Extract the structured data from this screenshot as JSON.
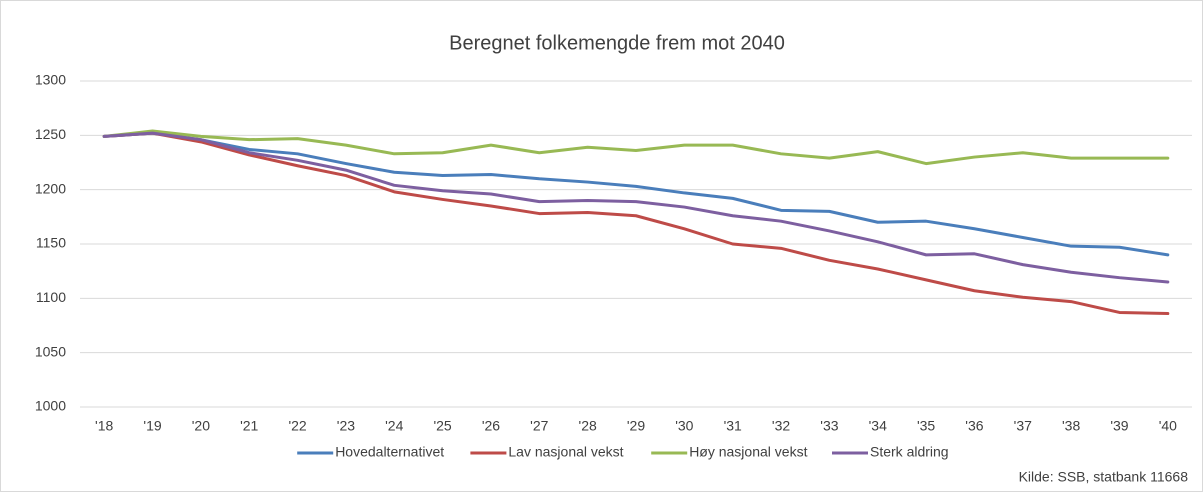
{
  "chart_data": {
    "type": "line",
    "title": "Beregnet folkemengde frem mot 2040",
    "source": "Kilde: SSB, statbank 11668",
    "categories": [
      "'18",
      "'19",
      "'20",
      "'21",
      "'22",
      "'23",
      "'24",
      "'25",
      "'26",
      "'27",
      "'28",
      "'29",
      "'30",
      "'31",
      "'32",
      "'33",
      "'34",
      "'35",
      "'36",
      "'37",
      "'38",
      "'39",
      "'40"
    ],
    "series": [
      {
        "name": "Hovedalternativet",
        "color": "#4a7ebb",
        "values": [
          1249,
          1252,
          1246,
          1237,
          1233,
          1224,
          1216,
          1213,
          1214,
          1210,
          1207,
          1203,
          1197,
          1192,
          1181,
          1180,
          1170,
          1171,
          1164,
          1156,
          1148,
          1147,
          1140
        ]
      },
      {
        "name": "Lav nasjonal vekst",
        "color": "#be4b48",
        "values": [
          1249,
          1252,
          1244,
          1232,
          1222,
          1213,
          1198,
          1191,
          1185,
          1178,
          1179,
          1176,
          1164,
          1150,
          1146,
          1135,
          1127,
          1117,
          1107,
          1101,
          1097,
          1087,
          1086
        ]
      },
      {
        "name": "Høy nasjonal vekst",
        "color": "#98b954",
        "values": [
          1249,
          1254,
          1249,
          1246,
          1247,
          1241,
          1233,
          1234,
          1241,
          1234,
          1239,
          1236,
          1241,
          1241,
          1233,
          1229,
          1235,
          1224,
          1230,
          1234,
          1229,
          1229,
          1229
        ]
      },
      {
        "name": "Sterk aldring",
        "color": "#7d5fa0",
        "values": [
          1249,
          1252,
          1246,
          1234,
          1227,
          1218,
          1204,
          1199,
          1196,
          1189,
          1190,
          1189,
          1184,
          1176,
          1171,
          1162,
          1152,
          1140,
          1141,
          1131,
          1124,
          1119,
          1115
        ]
      }
    ],
    "ylim": [
      1000,
      1300
    ],
    "yticks": [
      1000,
      1050,
      1100,
      1150,
      1200,
      1250,
      1300
    ],
    "grid": true,
    "legend": "bottom"
  }
}
